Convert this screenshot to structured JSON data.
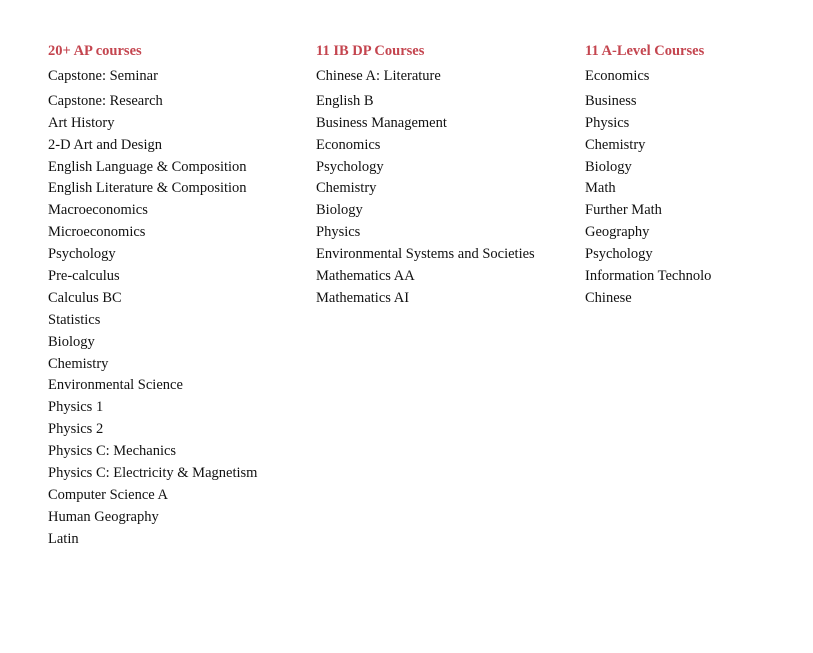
{
  "columns": [
    {
      "title": "20+ AP courses",
      "items": [
        "Capstone: Seminar",
        "Capstone: Research",
        "Art History",
        "2-D Art and Design",
        "English Language & Composition",
        "English Literature & Composition",
        "Macroeconomics",
        "Microeconomics",
        "Psychology",
        "Pre-calculus",
        "Calculus BC",
        "Statistics",
        "Biology",
        "Chemistry",
        "Environmental Science",
        "Physics 1",
        "Physics 2",
        "Physics C: Mechanics",
        "Physics C: Electricity & Magnetism",
        "Computer Science A",
        "Human Geography",
        "Latin"
      ]
    },
    {
      "title": "11 IB DP Courses",
      "items": [
        "Chinese A: Literature",
        "English B",
        "Business Management",
        "Economics",
        "Psychology",
        "Chemistry",
        "Biology",
        "Physics",
        "Environmental Systems and Societies",
        "Mathematics AA",
        "Mathematics AI"
      ]
    },
    {
      "title": "11 A-Level Courses",
      "items": [
        "Economics",
        "Business",
        "Physics",
        "Chemistry",
        "Biology",
        "Math",
        "Further Math",
        "Geography",
        "Psychology",
        "Information Technolo",
        "Chinese"
      ]
    }
  ],
  "colors": {
    "heading": "#c4454f",
    "text": "#111111"
  }
}
